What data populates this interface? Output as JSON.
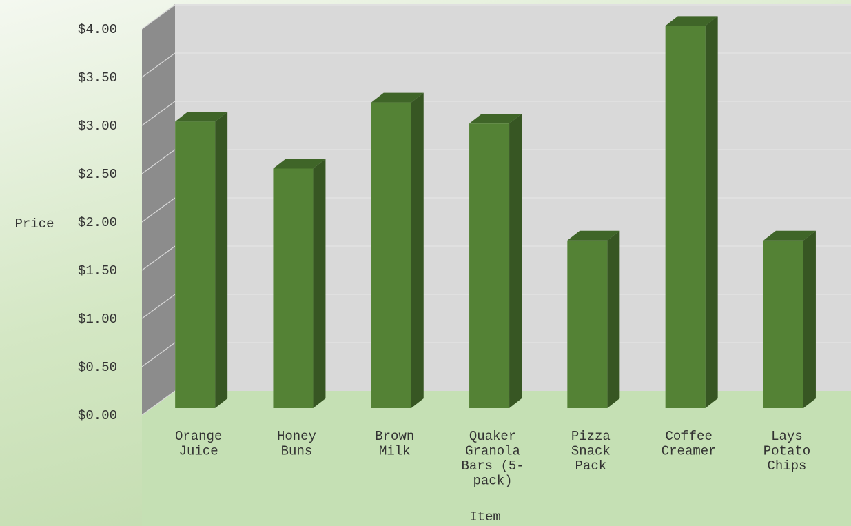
{
  "chart_data": {
    "type": "bar",
    "title": "",
    "xlabel": "Item",
    "ylabel": "Price",
    "categories": [
      [
        "Orange",
        "Juice"
      ],
      [
        "Honey",
        "Buns"
      ],
      [
        "Brown",
        "Milk"
      ],
      [
        "Quaker",
        "Granola",
        "Bars (5-",
        "pack)"
      ],
      [
        "Pizza",
        "Snack",
        "Pack"
      ],
      [
        "Coffee",
        "Creamer"
      ],
      [
        "Lays",
        "Potato",
        "Chips"
      ]
    ],
    "values": [
      2.99,
      2.5,
      3.19,
      2.97,
      1.75,
      3.99,
      1.75
    ],
    "ylim": [
      0,
      4
    ],
    "y_ticks": [
      "$0.00",
      "$0.50",
      "$1.00",
      "$1.50",
      "$2.00",
      "$2.50",
      "$3.00",
      "$3.50",
      "$4.00"
    ],
    "grid": true,
    "legend": "none",
    "colors": {
      "bar_front": "#548235",
      "bar_side": "#375623",
      "bar_top": "#3f6528",
      "back_wall": "#d9d9d9",
      "side_wall": "#8c8c8c",
      "floor": "#c5e0b4",
      "gridline": "#e6e6e6"
    }
  }
}
